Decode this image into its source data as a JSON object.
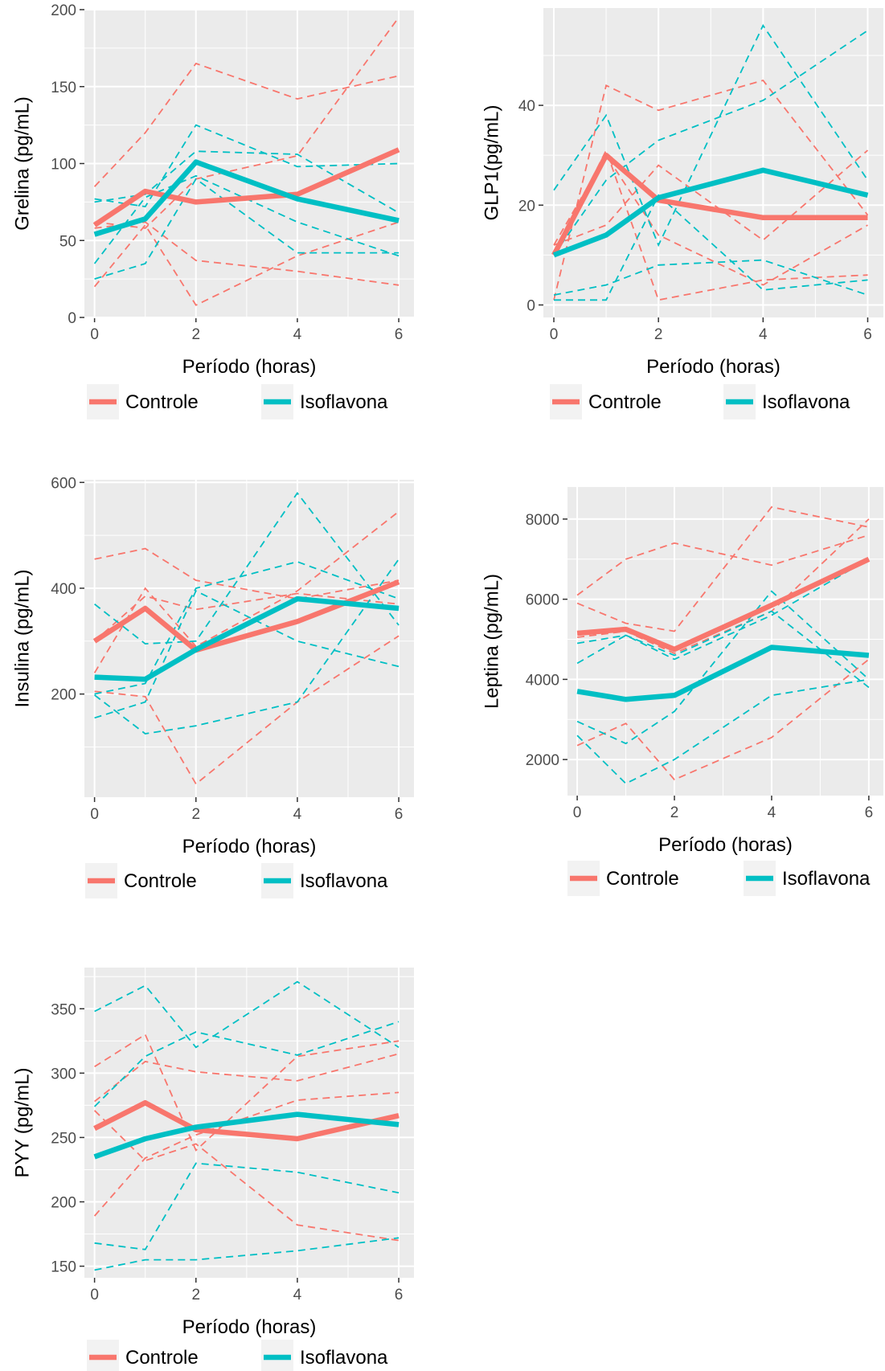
{
  "colors": {
    "controle": "#F8766D",
    "isoflavona": "#00BFC4",
    "panel_bg": "#EBEBEB",
    "grid": "#FFFFFF"
  },
  "chart_data": [
    {
      "type": "line",
      "xlabel": "Período (horas)",
      "ylabel": "Grelina (pg/mL)",
      "x": [
        0,
        1,
        2,
        4,
        6
      ],
      "xlim": [
        -0.2,
        6.3
      ],
      "ylim": [
        0,
        200
      ],
      "xticks": [
        0,
        2,
        4,
        6
      ],
      "yticks": [
        0,
        50,
        100,
        150,
        200
      ],
      "grid": true,
      "legend": "bottom",
      "legend_entries": [
        "Controle",
        "Isoflavona"
      ],
      "series": [
        {
          "name": "Controle",
          "group": "controle",
          "role": "mean",
          "values": [
            60,
            82,
            75,
            80,
            109
          ]
        },
        {
          "name": "Isoflavona",
          "group": "isoflavona",
          "role": "mean",
          "values": [
            54,
            64,
            101,
            77,
            63
          ]
        }
      ],
      "individual_series": [
        {
          "group": "controle",
          "values": [
            85,
            120,
            165,
            142,
            157
          ]
        },
        {
          "group": "controle",
          "values": [
            62,
            58,
            90,
            105,
            195
          ]
        },
        {
          "group": "controle",
          "values": [
            20,
            60,
            8,
            40,
            62
          ]
        },
        {
          "group": "controle",
          "values": [
            58,
            62,
            37,
            30,
            21
          ]
        },
        {
          "group": "isoflavona",
          "values": [
            77,
            72,
            125,
            98,
            100
          ]
        },
        {
          "group": "isoflavona",
          "values": [
            75,
            80,
            108,
            106,
            68
          ]
        },
        {
          "group": "isoflavona",
          "values": [
            35,
            78,
            92,
            62,
            40
          ]
        },
        {
          "group": "isoflavona",
          "values": [
            25,
            35,
            90,
            42,
            42
          ]
        }
      ]
    },
    {
      "type": "line",
      "xlabel": "Período (horas)",
      "ylabel": "GLP1(pg/mL)",
      "x": [
        0,
        1,
        2,
        4,
        6
      ],
      "xlim": [
        -0.2,
        6.3
      ],
      "ylim": [
        -2.5,
        59.5
      ],
      "xticks": [
        0,
        2,
        4,
        6
      ],
      "yticks": [
        0,
        20,
        40
      ],
      "grid": true,
      "legend": "bottom",
      "legend_entries": [
        "Controle",
        "Isoflavona"
      ],
      "series": [
        {
          "name": "Controle",
          "group": "controle",
          "role": "mean",
          "values": [
            10,
            30,
            21,
            17.5,
            17.5
          ]
        },
        {
          "name": "Isoflavona",
          "group": "isoflavona",
          "role": "mean",
          "values": [
            10,
            14,
            21.5,
            27,
            22
          ]
        }
      ],
      "individual_series": [
        {
          "group": "controle",
          "values": [
            1,
            44,
            39,
            45,
            18
          ]
        },
        {
          "group": "controle",
          "values": [
            12,
            30,
            14,
            4,
            16
          ]
        },
        {
          "group": "controle",
          "values": [
            12,
            16,
            28,
            13,
            31
          ]
        },
        {
          "group": "controle",
          "values": [
            10,
            31,
            1,
            5,
            6
          ]
        },
        {
          "group": "isoflavona",
          "values": [
            23,
            38,
            12,
            56,
            25
          ]
        },
        {
          "group": "isoflavona",
          "values": [
            10,
            25,
            33,
            41,
            55
          ]
        },
        {
          "group": "isoflavona",
          "values": [
            2,
            4,
            8,
            9,
            2
          ]
        },
        {
          "group": "isoflavona",
          "values": [
            1,
            1,
            22,
            3,
            5
          ]
        }
      ]
    },
    {
      "type": "line",
      "xlabel": "Período (horas)",
      "ylabel": "Insulina (pg/mL)",
      "x": [
        0,
        1,
        2,
        4,
        6
      ],
      "xlim": [
        -0.2,
        6.3
      ],
      "ylim": [
        5,
        605
      ],
      "xticks": [
        0,
        2,
        4,
        6
      ],
      "yticks": [
        200,
        400,
        600
      ],
      "grid": true,
      "legend": "bottom",
      "legend_entries": [
        "Controle",
        "Isoflavona"
      ],
      "series": [
        {
          "name": "Controle",
          "group": "controle",
          "role": "mean",
          "values": [
            300,
            362,
            283,
            337,
            412
          ]
        },
        {
          "name": "Isoflavona",
          "group": "isoflavona",
          "role": "mean",
          "values": [
            232,
            228,
            284,
            380,
            362
          ]
        }
      ],
      "individual_series": [
        {
          "group": "controle",
          "values": [
            455,
            475,
            415,
            380,
            415
          ]
        },
        {
          "group": "controle",
          "values": [
            240,
            400,
            290,
            395,
            545
          ]
        },
        {
          "group": "controle",
          "values": [
            205,
            195,
            30,
            185,
            310
          ]
        },
        {
          "group": "controle",
          "values": [
            300,
            385,
            360,
            390,
            370
          ]
        },
        {
          "group": "isoflavona",
          "values": [
            370,
            295,
            300,
            580,
            330
          ]
        },
        {
          "group": "isoflavona",
          "values": [
            200,
            220,
            400,
            450,
            380
          ]
        },
        {
          "group": "isoflavona",
          "values": [
            155,
            185,
            395,
            300,
            252
          ]
        },
        {
          "group": "isoflavona",
          "values": [
            198,
            125,
            140,
            185,
            455
          ]
        }
      ]
    },
    {
      "type": "line",
      "xlabel": "Período (horas)",
      "ylabel": "Leptina (pg/mL)",
      "x": [
        0,
        1,
        2,
        4,
        6
      ],
      "xlim": [
        -0.2,
        6.3
      ],
      "ylim": [
        1100,
        8800
      ],
      "xticks": [
        0,
        2,
        4,
        6
      ],
      "yticks": [
        2000,
        4000,
        6000,
        8000
      ],
      "grid": true,
      "legend": "bottom",
      "legend_entries": [
        "Controle",
        "Isoflavona"
      ],
      "series": [
        {
          "name": "Controle",
          "group": "controle",
          "role": "mean",
          "values": [
            5150,
            5250,
            4750,
            5850,
            7000
          ]
        },
        {
          "name": "Isoflavona",
          "group": "isoflavona",
          "role": "mean",
          "values": [
            3700,
            3500,
            3600,
            4800,
            4600
          ]
        }
      ],
      "individual_series": [
        {
          "group": "controle",
          "values": [
            6100,
            7000,
            7400,
            6850,
            7600
          ]
        },
        {
          "group": "controle",
          "values": [
            5900,
            5400,
            5200,
            8300,
            7800
          ]
        },
        {
          "group": "controle",
          "values": [
            5050,
            5200,
            4650,
            5700,
            8000
          ]
        },
        {
          "group": "controle",
          "values": [
            2350,
            2900,
            1500,
            2550,
            4500
          ]
        },
        {
          "group": "isoflavona",
          "values": [
            4400,
            5100,
            4500,
            5600,
            7000
          ]
        },
        {
          "group": "isoflavona",
          "values": [
            2950,
            2400,
            3200,
            6200,
            4000
          ]
        },
        {
          "group": "isoflavona",
          "values": [
            2600,
            1400,
            2000,
            3600,
            4000
          ]
        },
        {
          "group": "isoflavona",
          "values": [
            4900,
            5100,
            4600,
            5700,
            3800
          ]
        }
      ]
    },
    {
      "type": "line",
      "xlabel": "Período (horas)",
      "ylabel": "PYY (pg/mL)",
      "x": [
        0,
        1,
        2,
        4,
        6
      ],
      "xlim": [
        -0.2,
        6.3
      ],
      "ylim": [
        141,
        382
      ],
      "xticks": [
        0,
        2,
        4,
        6
      ],
      "yticks": [
        150,
        200,
        250,
        300,
        350
      ],
      "grid": true,
      "legend": "bottom",
      "legend_entries": [
        "Controle",
        "Isoflavona"
      ],
      "series": [
        {
          "name": "Controle",
          "group": "controle",
          "role": "mean",
          "values": [
            257,
            277,
            256,
            249,
            267
          ]
        },
        {
          "name": "Isoflavona",
          "group": "isoflavona",
          "role": "mean",
          "values": [
            235,
            249,
            258,
            268,
            260
          ]
        }
      ],
      "individual_series": [
        {
          "group": "controle",
          "values": [
            305,
            330,
            240,
            313,
            325
          ]
        },
        {
          "group": "controle",
          "values": [
            278,
            309,
            301,
            294,
            315
          ]
        },
        {
          "group": "controle",
          "values": [
            189,
            234,
            252,
            279,
            285
          ]
        },
        {
          "group": "controle",
          "values": [
            271,
            232,
            245,
            182,
            170
          ]
        },
        {
          "group": "isoflavona",
          "values": [
            348,
            368,
            320,
            371,
            320
          ]
        },
        {
          "group": "isoflavona",
          "values": [
            274,
            313,
            332,
            314,
            340
          ]
        },
        {
          "group": "isoflavona",
          "values": [
            168,
            163,
            230,
            223,
            207
          ]
        },
        {
          "group": "isoflavona",
          "values": [
            147,
            155,
            155,
            162,
            172
          ]
        }
      ]
    }
  ]
}
